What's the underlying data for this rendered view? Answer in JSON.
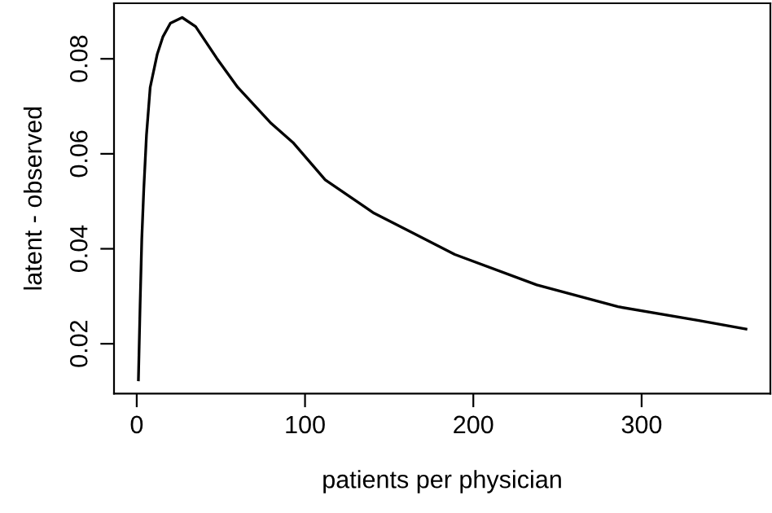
{
  "chart_data": {
    "type": "line",
    "xlabel": "patients per physician",
    "ylabel": "latent - observed",
    "x": [
      1,
      2,
      3,
      4.2,
      5.8,
      8,
      12.2,
      15.5,
      20,
      27,
      35,
      47.6,
      60,
      79.9,
      92.8,
      112,
      141,
      189,
      237.7,
      286,
      334,
      362
    ],
    "values": [
      0.0124,
      0.028,
      0.042,
      0.0526,
      0.064,
      0.074,
      0.081,
      0.0846,
      0.0875,
      0.0887,
      0.0868,
      0.0801,
      0.074,
      0.0664,
      0.0624,
      0.0545,
      0.0475,
      0.0388,
      0.0324,
      0.0278,
      0.0249,
      0.0231
    ],
    "color": "#000000",
    "xlim": [
      -13.5,
      376.5
    ],
    "ylim": [
      0.0095,
      0.0917
    ],
    "xticks": [
      0,
      100,
      200,
      300
    ],
    "yticks": [
      0.02,
      0.04,
      0.06,
      0.08
    ],
    "grid": false,
    "legend": false,
    "marker": "none",
    "line_style": "solid"
  }
}
